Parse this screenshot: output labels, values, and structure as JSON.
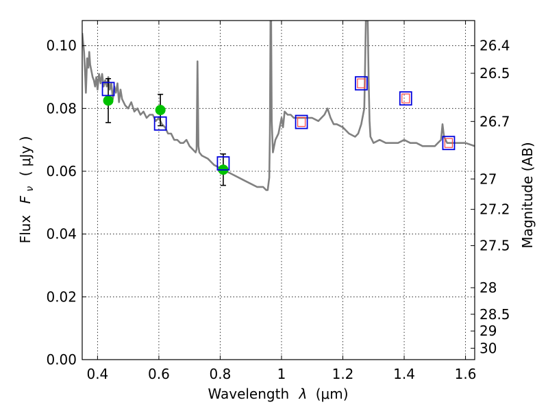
{
  "chart_data": {
    "type": "line",
    "xlabel": "Wavelength",
    "xlabel_symbol": "λ",
    "xlabel_unit": "(μm)",
    "ylabel": "Flux",
    "ylabel_symbol": "F",
    "ylabel_subscript": "ν",
    "ylabel_unit": "( μJy )",
    "ylabel_right": "Magnitude (AB)",
    "xlim": [
      0.35,
      1.63
    ],
    "ylim": [
      0.0,
      0.108
    ],
    "grid": true,
    "x_ticks": [
      {
        "value": 0.4,
        "label": "0.4"
      },
      {
        "value": 0.6,
        "label": "0.6"
      },
      {
        "value": 0.8,
        "label": "0.8"
      },
      {
        "value": 1.0,
        "label": "1"
      },
      {
        "value": 1.2,
        "label": "1.2"
      },
      {
        "value": 1.4,
        "label": "1.4"
      },
      {
        "value": 1.6,
        "label": "1.6"
      }
    ],
    "y_ticks": [
      {
        "value": 0.0,
        "label": "0.00"
      },
      {
        "value": 0.02,
        "label": "0.02"
      },
      {
        "value": 0.04,
        "label": "0.04"
      },
      {
        "value": 0.06,
        "label": "0.06"
      },
      {
        "value": 0.08,
        "label": "0.08"
      },
      {
        "value": 0.1,
        "label": "0.10"
      }
    ],
    "mag_ticks": [
      {
        "value": 26.4,
        "label": "26.4"
      },
      {
        "value": 26.5,
        "label": "26.5"
      },
      {
        "value": 26.7,
        "label": "26.7"
      },
      {
        "value": 27.0,
        "label": "27"
      },
      {
        "value": 27.2,
        "label": "27.2"
      },
      {
        "value": 27.5,
        "label": "27.5"
      },
      {
        "value": 28.0,
        "label": "28"
      },
      {
        "value": 28.5,
        "label": "28.5"
      },
      {
        "value": 29.0,
        "label": "29"
      },
      {
        "value": 30.0,
        "label": "30"
      }
    ],
    "series": [
      {
        "kind": "model_spectrum",
        "color": "#808080",
        "x": [
          0.35,
          0.356,
          0.36,
          0.362,
          0.366,
          0.37,
          0.373,
          0.376,
          0.38,
          0.384,
          0.388,
          0.392,
          0.396,
          0.4,
          0.405,
          0.41,
          0.415,
          0.42,
          0.425,
          0.43,
          0.435,
          0.44,
          0.445,
          0.45,
          0.455,
          0.46,
          0.465,
          0.47,
          0.475,
          0.48,
          0.49,
          0.5,
          0.51,
          0.52,
          0.53,
          0.54,
          0.55,
          0.56,
          0.57,
          0.58,
          0.59,
          0.6,
          0.61,
          0.62,
          0.63,
          0.64,
          0.65,
          0.66,
          0.67,
          0.68,
          0.69,
          0.7,
          0.71,
          0.72,
          0.723,
          0.726,
          0.729,
          0.732,
          0.74,
          0.76,
          0.78,
          0.8,
          0.82,
          0.84,
          0.86,
          0.88,
          0.9,
          0.92,
          0.94,
          0.95,
          0.955,
          0.96,
          0.962,
          0.964,
          0.966,
          0.968,
          0.972,
          0.976,
          0.98,
          0.99,
          1.0,
          1.005,
          1.01,
          1.02,
          1.03,
          1.04,
          1.05,
          1.06,
          1.08,
          1.1,
          1.12,
          1.14,
          1.15,
          1.16,
          1.17,
          1.18,
          1.2,
          1.22,
          1.24,
          1.25,
          1.26,
          1.27,
          1.272,
          1.275,
          1.278,
          1.281,
          1.284,
          1.287,
          1.29,
          1.3,
          1.32,
          1.34,
          1.36,
          1.38,
          1.4,
          1.42,
          1.44,
          1.46,
          1.48,
          1.5,
          1.51,
          1.52,
          1.525,
          1.53,
          1.54,
          1.56,
          1.58,
          1.6,
          1.63
        ],
        "y": [
          0.104,
          0.098,
          0.09,
          0.085,
          0.096,
          0.093,
          0.098,
          0.094,
          0.092,
          0.09,
          0.089,
          0.087,
          0.09,
          0.086,
          0.091,
          0.088,
          0.091,
          0.087,
          0.089,
          0.087,
          0.09,
          0.086,
          0.088,
          0.083,
          0.087,
          0.085,
          0.088,
          0.082,
          0.086,
          0.083,
          0.081,
          0.08,
          0.082,
          0.079,
          0.08,
          0.078,
          0.079,
          0.077,
          0.078,
          0.078,
          0.076,
          0.077,
          0.075,
          0.074,
          0.072,
          0.072,
          0.07,
          0.07,
          0.069,
          0.069,
          0.07,
          0.068,
          0.067,
          0.066,
          0.067,
          0.095,
          0.068,
          0.066,
          0.065,
          0.064,
          0.062,
          0.061,
          0.06,
          0.059,
          0.058,
          0.057,
          0.056,
          0.055,
          0.055,
          0.054,
          0.054,
          0.058,
          0.072,
          0.108,
          0.108,
          0.076,
          0.066,
          0.068,
          0.07,
          0.072,
          0.077,
          0.074,
          0.079,
          0.078,
          0.078,
          0.077,
          0.077,
          0.077,
          0.077,
          0.077,
          0.076,
          0.078,
          0.08,
          0.077,
          0.075,
          0.075,
          0.074,
          0.072,
          0.071,
          0.072,
          0.075,
          0.08,
          0.09,
          0.108,
          0.108,
          0.108,
          0.09,
          0.076,
          0.071,
          0.069,
          0.07,
          0.069,
          0.069,
          0.069,
          0.07,
          0.069,
          0.069,
          0.068,
          0.068,
          0.068,
          0.069,
          0.07,
          0.075,
          0.071,
          0.069,
          0.069,
          0.069,
          0.069,
          0.068
        ]
      },
      {
        "kind": "observed_points",
        "marker": "circle",
        "color": "#00c000",
        "x": [
          0.435,
          0.605,
          0.81
        ],
        "y": [
          0.0825,
          0.0795,
          0.0605
        ],
        "yerr": [
          0.007,
          0.005,
          0.005
        ]
      },
      {
        "kind": "model_photometry",
        "marker": "square",
        "color": "#0000dd",
        "x": [
          0.435,
          0.605,
          0.81,
          1.065,
          1.26,
          1.405,
          1.545
        ],
        "y": [
          0.0862,
          0.0752,
          0.0625,
          0.0757,
          0.088,
          0.0832,
          0.069
        ]
      },
      {
        "kind": "model_photometry_small",
        "marker": "square",
        "color": "#ff4444",
        "x": [
          1.065,
          1.26,
          1.405,
          1.545
        ],
        "y": [
          0.0757,
          0.088,
          0.0832,
          0.069
        ]
      }
    ]
  }
}
